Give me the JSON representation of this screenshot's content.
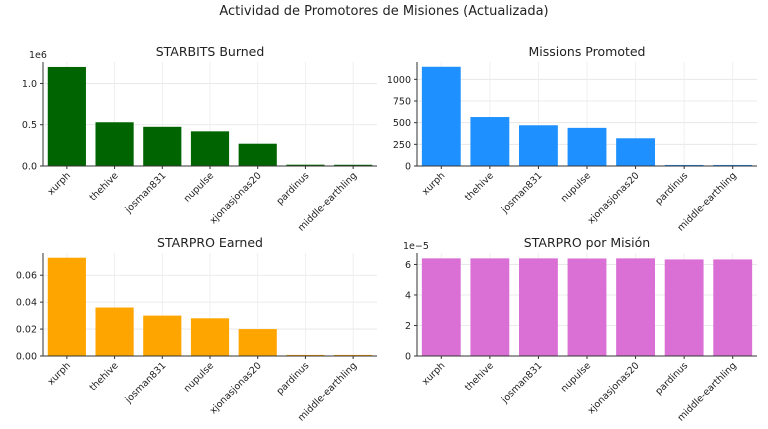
{
  "figure": {
    "suptitle": "Actividad de Promotores de Misiones (Actualizada)"
  },
  "chart_data": [
    {
      "type": "bar",
      "title": "STARBITS Burned",
      "color": "#006400",
      "categories": [
        "xurph",
        "thehive",
        "josman831",
        "nupulse",
        "xjonasjonas20",
        "pardinus",
        "middle-earthling"
      ],
      "values": [
        1200000,
        530000,
        475000,
        420000,
        270000,
        16000,
        15000
      ],
      "ylim": [
        0,
        1260000
      ],
      "yticks": [
        0,
        500000,
        1000000
      ],
      "ytick_labels": [
        "0.0",
        "0.5",
        "1.0"
      ],
      "offset_label": "1e6",
      "grid": true
    },
    {
      "type": "bar",
      "title": "Missions Promoted",
      "color": "#1E90FF",
      "categories": [
        "xurph",
        "thehive",
        "josman831",
        "nupulse",
        "xjonasjonas20",
        "pardinus",
        "middle-earthling"
      ],
      "values": [
        1145,
        565,
        470,
        440,
        320,
        12,
        12
      ],
      "ylim": [
        0,
        1200
      ],
      "yticks": [
        0,
        250,
        500,
        750,
        1000
      ],
      "ytick_labels": [
        "0",
        "250",
        "500",
        "750",
        "1000"
      ],
      "offset_label": "",
      "grid": true
    },
    {
      "type": "bar",
      "title": "STARPRO Earned",
      "color": "#FFA500",
      "categories": [
        "xurph",
        "thehive",
        "josman831",
        "nupulse",
        "xjonasjonas20",
        "pardinus",
        "middle-earthling"
      ],
      "values": [
        0.073,
        0.036,
        0.03,
        0.028,
        0.02,
        0.0008,
        0.0008
      ],
      "ylim": [
        0,
        0.0765
      ],
      "yticks": [
        0,
        0.02,
        0.04,
        0.06
      ],
      "ytick_labels": [
        "0.00",
        "0.02",
        "0.04",
        "0.06"
      ],
      "offset_label": "",
      "grid": true
    },
    {
      "type": "bar",
      "title": "STARPRO por Misión",
      "color": "#DA70D6",
      "categories": [
        "xurph",
        "thehive",
        "josman831",
        "nupulse",
        "xjonasjonas20",
        "pardinus",
        "middle-earthling"
      ],
      "values": [
        6.4e-05,
        6.4e-05,
        6.4e-05,
        6.39e-05,
        6.4e-05,
        6.33e-05,
        6.33e-05
      ],
      "ylim": [
        0,
        6.75e-05
      ],
      "yticks": [
        0,
        2e-05,
        4e-05,
        6e-05
      ],
      "ytick_labels": [
        "0",
        "2",
        "4",
        "6"
      ],
      "offset_label": "1e−5",
      "grid": true
    }
  ]
}
